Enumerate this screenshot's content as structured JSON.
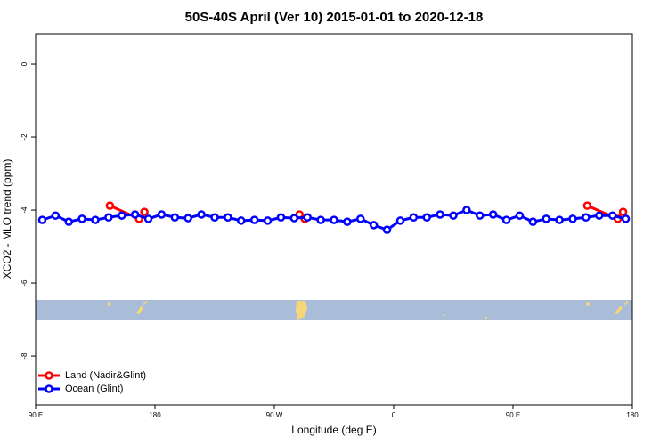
{
  "chart_data": {
    "type": "line",
    "title": "50S-40S April (Ver 10)   2015-01-01 to 2020-12-18",
    "x_label": "Longitude (deg E)",
    "y_label": "XCO2 - MLO trend (ppm)",
    "xlim": [
      90,
      540
    ],
    "ylim": [
      -9.34,
      0.83
    ],
    "xticks": [
      {
        "value": 90,
        "label": "90 E"
      },
      {
        "value": 180,
        "label": "180"
      },
      {
        "value": 270,
        "label": "90 W"
      },
      {
        "value": 360,
        "label": "0"
      },
      {
        "value": 450,
        "label": "90 E"
      },
      {
        "value": 540,
        "label": "180"
      }
    ],
    "yticks": [
      0,
      -2,
      -4,
      -6,
      -8
    ],
    "legend": "bottom-left",
    "series": [
      {
        "name": "Land (Nadir&Glint)",
        "color": "#ff0000",
        "x": [
          146,
          168,
          170,
          172,
          174,
          289,
          293,
          400,
          506,
          529,
          533
        ],
        "values": [
          -3.88,
          -4.24,
          null,
          -4.05,
          null,
          -4.12,
          -4.24,
          null,
          -3.88,
          -4.24,
          -4.05
        ]
      },
      {
        "name": "Ocean (Glint)",
        "color": "#0000ff",
        "x": [
          95,
          105,
          115,
          125,
          135,
          145,
          155,
          165,
          175,
          185,
          195,
          205,
          215,
          225,
          235,
          245,
          255,
          265,
          275,
          285,
          295,
          305,
          315,
          325,
          335,
          345,
          355,
          365,
          375,
          385,
          395,
          405,
          415,
          425,
          435,
          445,
          455,
          465,
          475,
          485,
          495,
          505,
          515,
          525,
          535
        ],
        "values": [
          -4.27,
          -4.15,
          -4.32,
          -4.24,
          -4.27,
          -4.2,
          -4.15,
          -4.12,
          -4.24,
          -4.12,
          -4.2,
          -4.22,
          -4.12,
          -4.2,
          -4.2,
          -4.29,
          -4.27,
          -4.29,
          -4.2,
          -4.22,
          -4.2,
          -4.27,
          -4.27,
          -4.32,
          -4.24,
          -4.41,
          -4.54,
          -4.29,
          -4.2,
          -4.2,
          -4.12,
          -4.15,
          -4.0,
          -4.15,
          -4.12,
          -4.27,
          -4.15,
          -4.32,
          -4.24,
          -4.27,
          -4.24,
          -4.2,
          -4.15,
          -4.15,
          -4.24
        ]
      }
    ]
  }
}
